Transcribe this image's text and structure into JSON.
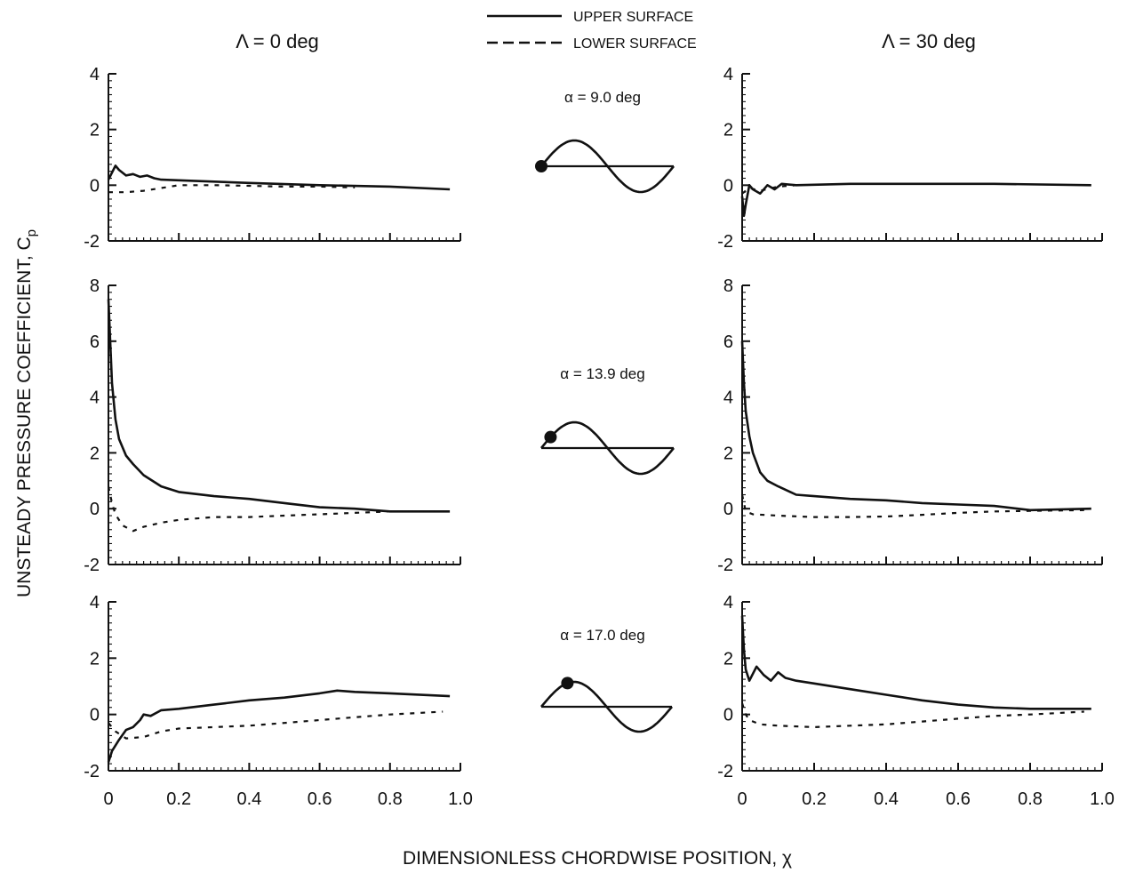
{
  "figure": {
    "ylabel_main": "UNSTEADY PRESSURE COEFFICIENT, C",
    "ylabel_sub": "p",
    "xlabel": "DIMENSIONLESS CHORDWISE POSITION, χ",
    "legend": {
      "upper": "UPPER SURFACE",
      "lower": "LOWER SURFACE",
      "placement": "top-center"
    },
    "column_headers": [
      "Λ = 0 deg",
      "Λ = 30 deg"
    ],
    "rows": [
      {
        "alpha_label": "α = 9.0 deg",
        "cycle_phase": 0.0
      },
      {
        "alpha_label": "α = 13.9 deg",
        "cycle_phase": 0.07
      },
      {
        "alpha_label": "α = 17.0 deg",
        "cycle_phase": 0.2
      }
    ]
  },
  "chart_data": [
    {
      "type": "line",
      "sweep": "Λ = 0 deg",
      "alpha": "α = 9.0 deg",
      "xlim": [
        0,
        1.0
      ],
      "ylim": [
        -2,
        4
      ],
      "yticks": [
        -2,
        0,
        2,
        4
      ],
      "xticks": [
        0,
        0.2,
        0.4,
        0.6,
        0.8,
        1.0
      ],
      "show_xtick_labels": false,
      "series": [
        {
          "name": "UPPER SURFACE",
          "style": "solid",
          "x": [
            0.0,
            0.01,
            0.02,
            0.03,
            0.05,
            0.07,
            0.09,
            0.11,
            0.13,
            0.15,
            0.25,
            0.4,
            0.6,
            0.8,
            0.97
          ],
          "y": [
            0.2,
            0.45,
            0.7,
            0.55,
            0.35,
            0.4,
            0.3,
            0.35,
            0.25,
            0.2,
            0.15,
            0.08,
            0.0,
            -0.05,
            -0.15
          ]
        },
        {
          "name": "LOWER SURFACE",
          "style": "dashed",
          "x": [
            0.0,
            0.05,
            0.1,
            0.15,
            0.2,
            0.3,
            0.4,
            0.5,
            0.6,
            0.7
          ],
          "y": [
            -0.25,
            -0.25,
            -0.2,
            -0.1,
            0.0,
            0.0,
            -0.02,
            -0.05,
            -0.05,
            -0.08
          ]
        }
      ]
    },
    {
      "type": "line",
      "sweep": "Λ = 30 deg",
      "alpha": "α = 9.0 deg",
      "xlim": [
        0,
        1.0
      ],
      "ylim": [
        -2,
        4
      ],
      "yticks": [
        -2,
        0,
        2,
        4
      ],
      "xticks": [
        0,
        0.2,
        0.4,
        0.6,
        0.8,
        1.0
      ],
      "show_xtick_labels": false,
      "series": [
        {
          "name": "UPPER SURFACE",
          "style": "solid",
          "x": [
            0.0,
            0.005,
            0.01,
            0.02,
            0.03,
            0.05,
            0.07,
            0.09,
            0.11,
            0.15,
            0.3,
            0.5,
            0.7,
            0.97
          ],
          "y": [
            -0.4,
            -1.1,
            -0.7,
            0.0,
            -0.15,
            -0.3,
            0.0,
            -0.15,
            0.05,
            0.0,
            0.05,
            0.05,
            0.05,
            0.0
          ]
        },
        {
          "name": "LOWER SURFACE",
          "style": "dashed",
          "x": [
            0.0,
            0.02,
            0.05,
            0.1,
            0.15
          ],
          "y": [
            -0.3,
            -0.1,
            -0.2,
            -0.05,
            0.0
          ]
        }
      ]
    },
    {
      "type": "line",
      "sweep": "Λ = 0 deg",
      "alpha": "α = 13.9 deg",
      "xlim": [
        0,
        1.0
      ],
      "ylim": [
        -2,
        8
      ],
      "yticks": [
        -2,
        0,
        2,
        4,
        6,
        8
      ],
      "xticks": [
        0,
        0.2,
        0.4,
        0.6,
        0.8,
        1.0
      ],
      "show_xtick_labels": false,
      "series": [
        {
          "name": "UPPER SURFACE",
          "style": "solid",
          "x": [
            0.0,
            0.005,
            0.01,
            0.02,
            0.03,
            0.05,
            0.07,
            0.1,
            0.15,
            0.2,
            0.3,
            0.4,
            0.5,
            0.6,
            0.7,
            0.8,
            0.97
          ],
          "y": [
            7.5,
            6.0,
            4.5,
            3.2,
            2.5,
            1.9,
            1.6,
            1.2,
            0.8,
            0.6,
            0.45,
            0.35,
            0.2,
            0.05,
            0.0,
            -0.1,
            -0.1
          ]
        },
        {
          "name": "LOWER SURFACE",
          "style": "dashed",
          "x": [
            0.0,
            0.01,
            0.02,
            0.04,
            0.07,
            0.1,
            0.15,
            0.2,
            0.3,
            0.4,
            0.5,
            0.6,
            0.7,
            0.8,
            0.95
          ],
          "y": [
            0.8,
            0.2,
            -0.2,
            -0.6,
            -0.8,
            -0.65,
            -0.5,
            -0.4,
            -0.3,
            -0.3,
            -0.25,
            -0.2,
            -0.15,
            -0.1,
            -0.1
          ]
        }
      ]
    },
    {
      "type": "line",
      "sweep": "Λ = 30 deg",
      "alpha": "α = 13.9 deg",
      "xlim": [
        0,
        1.0
      ],
      "ylim": [
        -2,
        8
      ],
      "yticks": [
        -2,
        0,
        2,
        4,
        6,
        8
      ],
      "xticks": [
        0,
        0.2,
        0.4,
        0.6,
        0.8,
        1.0
      ],
      "show_xtick_labels": false,
      "series": [
        {
          "name": "UPPER SURFACE",
          "style": "solid",
          "x": [
            0.0,
            0.005,
            0.01,
            0.02,
            0.03,
            0.05,
            0.07,
            0.1,
            0.15,
            0.2,
            0.3,
            0.4,
            0.5,
            0.6,
            0.7,
            0.8,
            0.97
          ],
          "y": [
            6.0,
            4.5,
            3.5,
            2.6,
            2.0,
            1.3,
            1.0,
            0.8,
            0.5,
            0.45,
            0.35,
            0.3,
            0.2,
            0.15,
            0.1,
            -0.05,
            0.0
          ]
        },
        {
          "name": "LOWER SURFACE",
          "style": "dashed",
          "x": [
            0.0,
            0.01,
            0.03,
            0.1,
            0.2,
            0.3,
            0.4,
            0.5,
            0.6,
            0.7,
            0.8,
            0.95
          ],
          "y": [
            0.5,
            -0.1,
            -0.2,
            -0.25,
            -0.3,
            -0.3,
            -0.28,
            -0.22,
            -0.15,
            -0.1,
            -0.08,
            -0.05
          ]
        }
      ]
    },
    {
      "type": "line",
      "sweep": "Λ = 0 deg",
      "alpha": "α = 17.0 deg",
      "xlim": [
        0,
        1.0
      ],
      "ylim": [
        -2,
        4
      ],
      "yticks": [
        -2,
        0,
        2,
        4
      ],
      "xticks": [
        0,
        0.2,
        0.4,
        0.6,
        0.8,
        1.0
      ],
      "show_xtick_labels": true,
      "series": [
        {
          "name": "UPPER SURFACE",
          "style": "solid",
          "x": [
            0.0,
            0.01,
            0.03,
            0.05,
            0.07,
            0.09,
            0.1,
            0.12,
            0.15,
            0.2,
            0.3,
            0.4,
            0.5,
            0.6,
            0.65,
            0.7,
            0.8,
            0.97
          ],
          "y": [
            -1.7,
            -1.3,
            -0.9,
            -0.55,
            -0.45,
            -0.2,
            0.0,
            -0.05,
            0.15,
            0.2,
            0.35,
            0.5,
            0.6,
            0.75,
            0.85,
            0.8,
            0.75,
            0.65
          ]
        },
        {
          "name": "LOWER SURFACE",
          "style": "dashed",
          "x": [
            0.0,
            0.02,
            0.05,
            0.1,
            0.15,
            0.2,
            0.3,
            0.4,
            0.5,
            0.6,
            0.7,
            0.8,
            0.95
          ],
          "y": [
            -0.3,
            -0.6,
            -0.85,
            -0.8,
            -0.6,
            -0.5,
            -0.45,
            -0.4,
            -0.3,
            -0.2,
            -0.1,
            0.0,
            0.1
          ]
        }
      ]
    },
    {
      "type": "line",
      "sweep": "Λ = 30 deg",
      "alpha": "α = 17.0 deg",
      "xlim": [
        0,
        1.0
      ],
      "ylim": [
        -2,
        4
      ],
      "yticks": [
        -2,
        0,
        2,
        4
      ],
      "xticks": [
        0,
        0.2,
        0.4,
        0.6,
        0.8,
        1.0
      ],
      "show_xtick_labels": true,
      "series": [
        {
          "name": "UPPER SURFACE",
          "style": "solid",
          "x": [
            0.0,
            0.005,
            0.01,
            0.02,
            0.04,
            0.06,
            0.08,
            0.1,
            0.12,
            0.15,
            0.2,
            0.3,
            0.4,
            0.5,
            0.6,
            0.7,
            0.8,
            0.97
          ],
          "y": [
            3.5,
            2.3,
            1.6,
            1.2,
            1.7,
            1.4,
            1.2,
            1.5,
            1.3,
            1.2,
            1.1,
            0.9,
            0.7,
            0.5,
            0.35,
            0.25,
            0.2,
            0.2
          ]
        },
        {
          "name": "LOWER SURFACE",
          "style": "dashed",
          "x": [
            0.0,
            0.01,
            0.02,
            0.05,
            0.1,
            0.2,
            0.3,
            0.4,
            0.5,
            0.6,
            0.7,
            0.8,
            0.95
          ],
          "y": [
            0.4,
            0.0,
            -0.2,
            -0.35,
            -0.4,
            -0.45,
            -0.4,
            -0.35,
            -0.25,
            -0.15,
            -0.05,
            0.0,
            0.1
          ]
        }
      ]
    }
  ]
}
